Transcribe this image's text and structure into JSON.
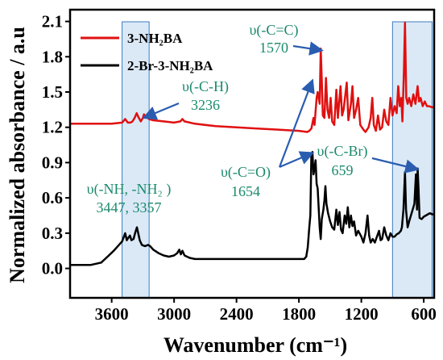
{
  "chart_data": {
    "type": "line",
    "xlabel": "Wavenumber (cm⁻¹)",
    "ylabel": "Normalized absorbance / a.u",
    "x_reversed": true,
    "xlim": [
      4000,
      500
    ],
    "ylim": [
      -0.25,
      2.2
    ],
    "x_ticks": [
      3600,
      3000,
      2400,
      1800,
      1200,
      600
    ],
    "y_ticks": [
      0.0,
      0.3,
      0.6,
      0.9,
      1.2,
      1.5,
      1.8,
      2.1
    ],
    "x_tick_labels": [
      "3600",
      "3000",
      "2400",
      "1800",
      "1200",
      "600"
    ],
    "y_tick_labels": [
      "0.0",
      "0.3",
      "0.6",
      "0.9",
      "1.2",
      "1.5",
      "1.8",
      "2.1"
    ],
    "grid": false,
    "legend_position": "top-left",
    "series": [
      {
        "name": "3-NH₂BA",
        "color": "#e01010",
        "points": [
          [
            4000,
            1.23
          ],
          [
            3800,
            1.23
          ],
          [
            3600,
            1.23
          ],
          [
            3500,
            1.24
          ],
          [
            3470,
            1.27
          ],
          [
            3445,
            1.24
          ],
          [
            3420,
            1.24
          ],
          [
            3400,
            1.25
          ],
          [
            3380,
            1.28
          ],
          [
            3360,
            1.32
          ],
          [
            3345,
            1.29
          ],
          [
            3320,
            1.25
          ],
          [
            3300,
            1.28
          ],
          [
            3290,
            1.31
          ],
          [
            3270,
            1.29
          ],
          [
            3240,
            1.27
          ],
          [
            3200,
            1.26
          ],
          [
            3100,
            1.25
          ],
          [
            3000,
            1.24
          ],
          [
            2940,
            1.25
          ],
          [
            2920,
            1.27
          ],
          [
            2900,
            1.25
          ],
          [
            2800,
            1.23
          ],
          [
            2600,
            1.21
          ],
          [
            2400,
            1.2
          ],
          [
            2200,
            1.19
          ],
          [
            2000,
            1.18
          ],
          [
            1800,
            1.17
          ],
          [
            1720,
            1.16
          ],
          [
            1700,
            1.17
          ],
          [
            1680,
            1.19
          ],
          [
            1660,
            1.28
          ],
          [
            1650,
            1.22
          ],
          [
            1630,
            1.45
          ],
          [
            1620,
            1.5
          ],
          [
            1600,
            1.4
          ],
          [
            1590,
            1.87
          ],
          [
            1580,
            1.6
          ],
          [
            1570,
            1.3
          ],
          [
            1555,
            1.28
          ],
          [
            1540,
            1.62
          ],
          [
            1525,
            1.35
          ],
          [
            1510,
            1.28
          ],
          [
            1495,
            1.45
          ],
          [
            1480,
            1.25
          ],
          [
            1460,
            1.22
          ],
          [
            1440,
            1.52
          ],
          [
            1425,
            1.28
          ],
          [
            1400,
            1.55
          ],
          [
            1385,
            1.3
          ],
          [
            1370,
            1.35
          ],
          [
            1340,
            1.58
          ],
          [
            1325,
            1.26
          ],
          [
            1300,
            1.4
          ],
          [
            1285,
            1.55
          ],
          [
            1270,
            1.28
          ],
          [
            1250,
            1.35
          ],
          [
            1230,
            1.45
          ],
          [
            1210,
            1.22
          ],
          [
            1180,
            1.18
          ],
          [
            1160,
            1.16
          ],
          [
            1130,
            1.2
          ],
          [
            1110,
            1.28
          ],
          [
            1095,
            1.45
          ],
          [
            1080,
            1.22
          ],
          [
            1060,
            1.17
          ],
          [
            1040,
            1.3
          ],
          [
            1020,
            1.18
          ],
          [
            1000,
            1.2
          ],
          [
            980,
            1.35
          ],
          [
            960,
            1.25
          ],
          [
            940,
            1.22
          ],
          [
            920,
            1.45
          ],
          [
            900,
            1.3
          ],
          [
            880,
            1.38
          ],
          [
            860,
            1.32
          ],
          [
            845,
            1.55
          ],
          [
            830,
            1.38
          ],
          [
            815,
            1.45
          ],
          [
            805,
            1.25
          ],
          [
            790,
            1.68
          ],
          [
            780,
            2.09
          ],
          [
            768,
            1.45
          ],
          [
            755,
            1.4
          ],
          [
            740,
            1.45
          ],
          [
            720,
            1.38
          ],
          [
            700,
            1.48
          ],
          [
            680,
            1.4
          ],
          [
            659,
            1.55
          ],
          [
            645,
            1.42
          ],
          [
            630,
            1.45
          ],
          [
            610,
            1.38
          ],
          [
            590,
            1.42
          ],
          [
            570,
            1.38
          ],
          [
            550,
            1.38
          ],
          [
            520,
            1.37
          ],
          [
            500,
            1.37
          ]
        ]
      },
      {
        "name": "2-Br-3-NH₂BA",
        "color": "#000000",
        "points": [
          [
            4000,
            0.03
          ],
          [
            3800,
            0.03
          ],
          [
            3700,
            0.05
          ],
          [
            3640,
            0.1
          ],
          [
            3580,
            0.15
          ],
          [
            3530,
            0.2
          ],
          [
            3500,
            0.23
          ],
          [
            3470,
            0.3
          ],
          [
            3455,
            0.24
          ],
          [
            3440,
            0.26
          ],
          [
            3425,
            0.28
          ],
          [
            3410,
            0.24
          ],
          [
            3390,
            0.25
          ],
          [
            3375,
            0.3
          ],
          [
            3357,
            0.35
          ],
          [
            3345,
            0.3
          ],
          [
            3330,
            0.24
          ],
          [
            3310,
            0.2
          ],
          [
            3280,
            0.19
          ],
          [
            3250,
            0.2
          ],
          [
            3230,
            0.19
          ],
          [
            3200,
            0.16
          ],
          [
            3150,
            0.13
          ],
          [
            3100,
            0.11
          ],
          [
            3050,
            0.1
          ],
          [
            3000,
            0.11
          ],
          [
            2970,
            0.13
          ],
          [
            2950,
            0.16
          ],
          [
            2935,
            0.12
          ],
          [
            2920,
            0.15
          ],
          [
            2900,
            0.11
          ],
          [
            2850,
            0.09
          ],
          [
            2800,
            0.08
          ],
          [
            2700,
            0.08
          ],
          [
            2600,
            0.08
          ],
          [
            2500,
            0.08
          ],
          [
            2400,
            0.08
          ],
          [
            2300,
            0.08
          ],
          [
            2200,
            0.08
          ],
          [
            2100,
            0.08
          ],
          [
            2000,
            0.08
          ],
          [
            1900,
            0.08
          ],
          [
            1800,
            0.08
          ],
          [
            1750,
            0.08
          ],
          [
            1730,
            0.1
          ],
          [
            1715,
            0.18
          ],
          [
            1700,
            0.35
          ],
          [
            1690,
            0.45
          ],
          [
            1680,
            0.97
          ],
          [
            1670,
            0.99
          ],
          [
            1660,
            0.8
          ],
          [
            1650,
            0.85
          ],
          [
            1640,
            0.92
          ],
          [
            1630,
            0.72
          ],
          [
            1620,
            0.68
          ],
          [
            1600,
            0.35
          ],
          [
            1590,
            0.25
          ],
          [
            1580,
            0.42
          ],
          [
            1565,
            0.5
          ],
          [
            1555,
            0.58
          ],
          [
            1545,
            0.7
          ],
          [
            1535,
            0.55
          ],
          [
            1520,
            0.47
          ],
          [
            1500,
            0.4
          ],
          [
            1480,
            0.35
          ],
          [
            1460,
            0.33
          ],
          [
            1440,
            0.5
          ],
          [
            1425,
            0.37
          ],
          [
            1410,
            0.48
          ],
          [
            1395,
            0.33
          ],
          [
            1380,
            0.3
          ],
          [
            1360,
            0.45
          ],
          [
            1345,
            0.38
          ],
          [
            1330,
            0.52
          ],
          [
            1315,
            0.35
          ],
          [
            1300,
            0.45
          ],
          [
            1285,
            0.36
          ],
          [
            1270,
            0.4
          ],
          [
            1250,
            0.28
          ],
          [
            1230,
            0.32
          ],
          [
            1200,
            0.27
          ],
          [
            1180,
            0.22
          ],
          [
            1160,
            0.3
          ],
          [
            1140,
            0.45
          ],
          [
            1125,
            0.28
          ],
          [
            1110,
            0.22
          ],
          [
            1090,
            0.25
          ],
          [
            1070,
            0.22
          ],
          [
            1050,
            0.27
          ],
          [
            1030,
            0.32
          ],
          [
            1015,
            0.24
          ],
          [
            1000,
            0.25
          ],
          [
            980,
            0.35
          ],
          [
            960,
            0.28
          ],
          [
            940,
            0.24
          ],
          [
            920,
            0.3
          ],
          [
            900,
            0.27
          ],
          [
            880,
            0.27
          ],
          [
            860,
            0.29
          ],
          [
            840,
            0.3
          ],
          [
            820,
            0.32
          ],
          [
            810,
            0.35
          ],
          [
            795,
            0.5
          ],
          [
            780,
            0.82
          ],
          [
            770,
            0.5
          ],
          [
            755,
            0.35
          ],
          [
            740,
            0.4
          ],
          [
            720,
            0.46
          ],
          [
            700,
            0.52
          ],
          [
            690,
            0.55
          ],
          [
            675,
            0.8
          ],
          [
            665,
            0.5
          ],
          [
            659,
            0.85
          ],
          [
            650,
            0.68
          ],
          [
            640,
            0.43
          ],
          [
            620,
            0.42
          ],
          [
            600,
            0.44
          ],
          [
            580,
            0.45
          ],
          [
            560,
            0.46
          ],
          [
            540,
            0.47
          ],
          [
            520,
            0.46
          ],
          [
            500,
            0.46
          ]
        ]
      }
    ],
    "highlight_regions": [
      [
        3500,
        3240
      ],
      [
        900,
        520
      ]
    ],
    "annotations": [
      {
        "id": "cc",
        "text": "υ(-C=C)",
        "text2": "1570",
        "peak": [
          1580,
          1.87
        ]
      },
      {
        "id": "ch",
        "text": "υ(-C-H)",
        "text2": "3236",
        "peak": [
          3260,
          1.3
        ]
      },
      {
        "id": "co",
        "text": "υ(-C=O)",
        "text2": "1654",
        "peak": [
          1660,
          1.6
        ],
        "peak2": [
          1668,
          0.99
        ]
      },
      {
        "id": "cbr",
        "text": "υ(-C-Br)",
        "text2": "659",
        "peak": [
          659,
          0.86
        ]
      },
      {
        "id": "nh",
        "text": "υ(-NH, -NH₂ )",
        "text2": "3447, 3357"
      }
    ]
  }
}
